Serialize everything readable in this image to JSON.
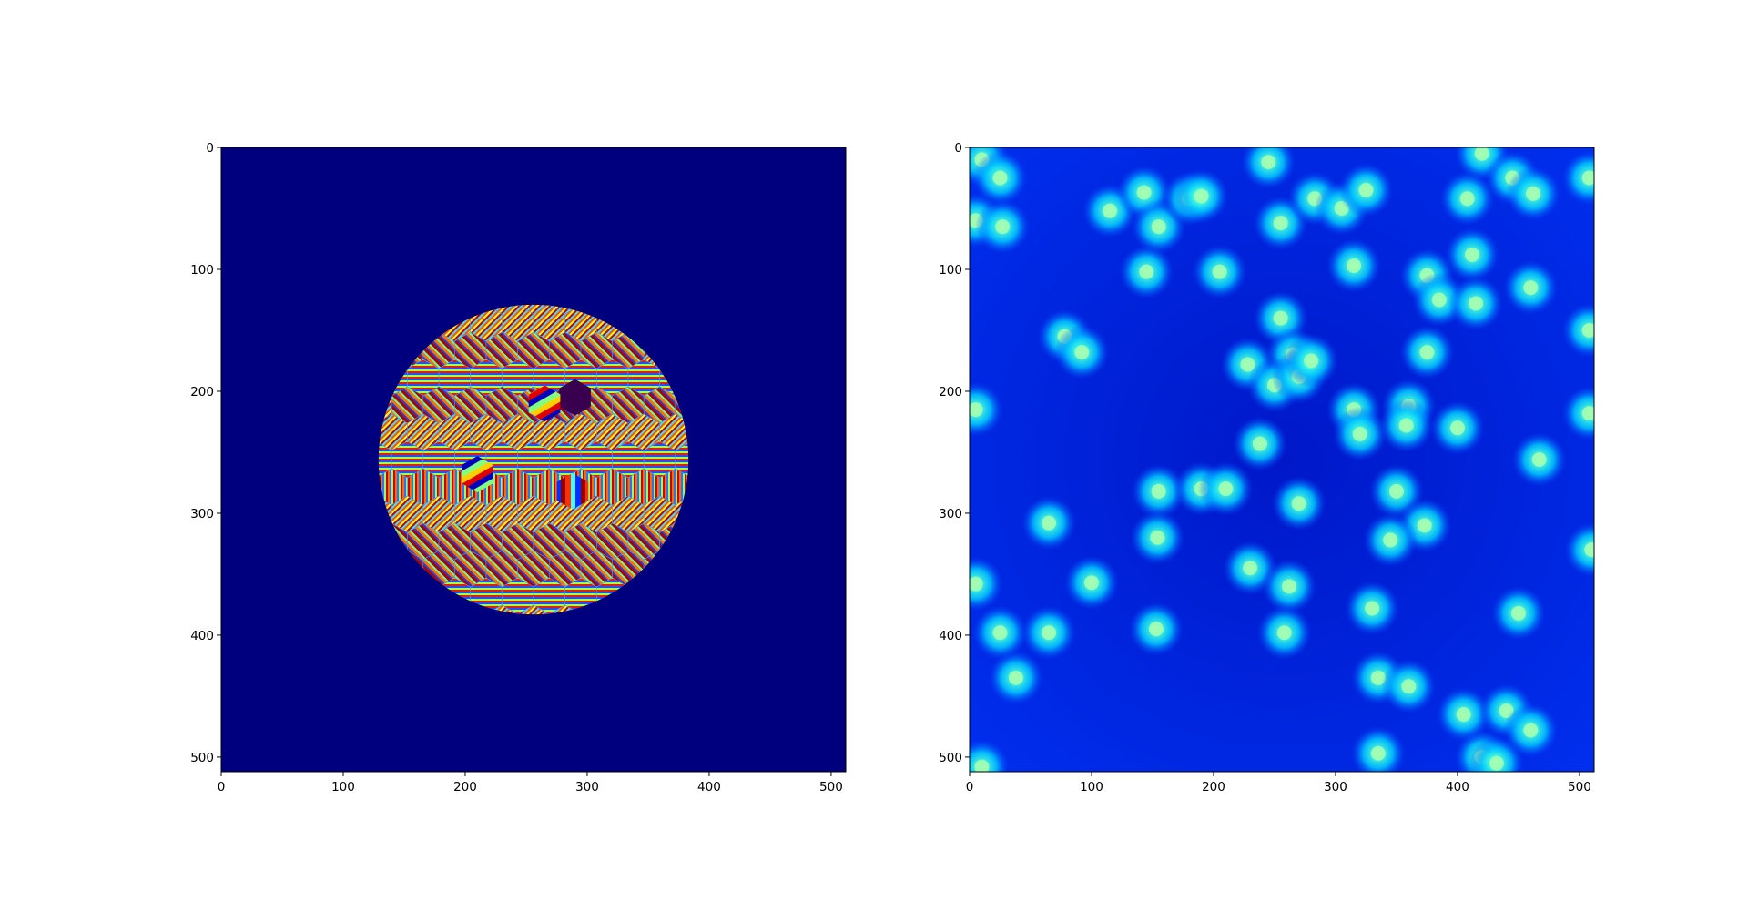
{
  "chart_data": [
    {
      "type": "heatmap",
      "title": "",
      "xlabel": "",
      "ylabel": "",
      "colormap": "jet",
      "image_size": [
        512,
        512
      ],
      "xlim": [
        0,
        512
      ],
      "ylim": [
        512,
        0
      ],
      "x_ticks": [
        0,
        100,
        200,
        300,
        400,
        500
      ],
      "y_ticks": [
        0,
        100,
        200,
        300,
        400,
        500
      ],
      "x_tick_labels": [
        "0",
        "100",
        "200",
        "300",
        "400",
        "500"
      ],
      "y_tick_labels": [
        "0",
        "100",
        "200",
        "300",
        "400",
        "500"
      ],
      "background_color": "#00007f",
      "content": {
        "shape": "disc",
        "center": [
          256,
          256
        ],
        "radius": 127,
        "pattern": "hexagonal tiles of striped phase gratings"
      }
    },
    {
      "type": "heatmap",
      "title": "",
      "xlabel": "",
      "ylabel": "",
      "colormap": "jet",
      "image_size": [
        512,
        512
      ],
      "xlim": [
        0,
        512
      ],
      "ylim": [
        512,
        0
      ],
      "x_ticks": [
        0,
        100,
        200,
        300,
        400,
        500
      ],
      "y_ticks": [
        0,
        100,
        200,
        300,
        400,
        500
      ],
      "x_tick_labels": [
        "0",
        "100",
        "200",
        "300",
        "400",
        "500"
      ],
      "y_tick_labels": [
        "0",
        "100",
        "200",
        "300",
        "400",
        "500"
      ],
      "background_color": "#0020e0",
      "spots": [
        [
          10,
          10
        ],
        [
          25,
          25
        ],
        [
          5,
          60
        ],
        [
          27,
          65
        ],
        [
          115,
          52
        ],
        [
          143,
          37
        ],
        [
          155,
          65
        ],
        [
          180,
          42
        ],
        [
          190,
          40
        ],
        [
          245,
          12
        ],
        [
          255,
          62
        ],
        [
          283,
          42
        ],
        [
          305,
          50
        ],
        [
          325,
          35
        ],
        [
          420,
          5
        ],
        [
          445,
          25
        ],
        [
          462,
          38
        ],
        [
          408,
          42
        ],
        [
          508,
          25
        ],
        [
          145,
          102
        ],
        [
          205,
          102
        ],
        [
          315,
          97
        ],
        [
          375,
          105
        ],
        [
          385,
          125
        ],
        [
          412,
          88
        ],
        [
          415,
          128
        ],
        [
          460,
          115
        ],
        [
          508,
          150
        ],
        [
          78,
          155
        ],
        [
          92,
          168
        ],
        [
          255,
          140
        ],
        [
          228,
          178
        ],
        [
          265,
          170
        ],
        [
          250,
          195
        ],
        [
          270,
          188
        ],
        [
          280,
          175
        ],
        [
          375,
          168
        ],
        [
          5,
          215
        ],
        [
          238,
          243
        ],
        [
          315,
          215
        ],
        [
          320,
          235
        ],
        [
          360,
          212
        ],
        [
          358,
          228
        ],
        [
          400,
          230
        ],
        [
          467,
          256
        ],
        [
          508,
          218
        ],
        [
          155,
          282
        ],
        [
          190,
          280
        ],
        [
          210,
          280
        ],
        [
          270,
          292
        ],
        [
          350,
          282
        ],
        [
          373,
          310
        ],
        [
          65,
          308
        ],
        [
          154,
          320
        ],
        [
          5,
          358
        ],
        [
          100,
          357
        ],
        [
          230,
          345
        ],
        [
          262,
          360
        ],
        [
          345,
          322
        ],
        [
          330,
          378
        ],
        [
          510,
          330
        ],
        [
          25,
          398
        ],
        [
          65,
          398
        ],
        [
          153,
          395
        ],
        [
          258,
          398
        ],
        [
          450,
          382
        ],
        [
          38,
          435
        ],
        [
          335,
          435
        ],
        [
          360,
          442
        ],
        [
          405,
          465
        ],
        [
          440,
          462
        ],
        [
          460,
          478
        ],
        [
          10,
          508
        ],
        [
          335,
          497
        ],
        [
          420,
          500
        ],
        [
          432,
          505
        ]
      ]
    }
  ]
}
